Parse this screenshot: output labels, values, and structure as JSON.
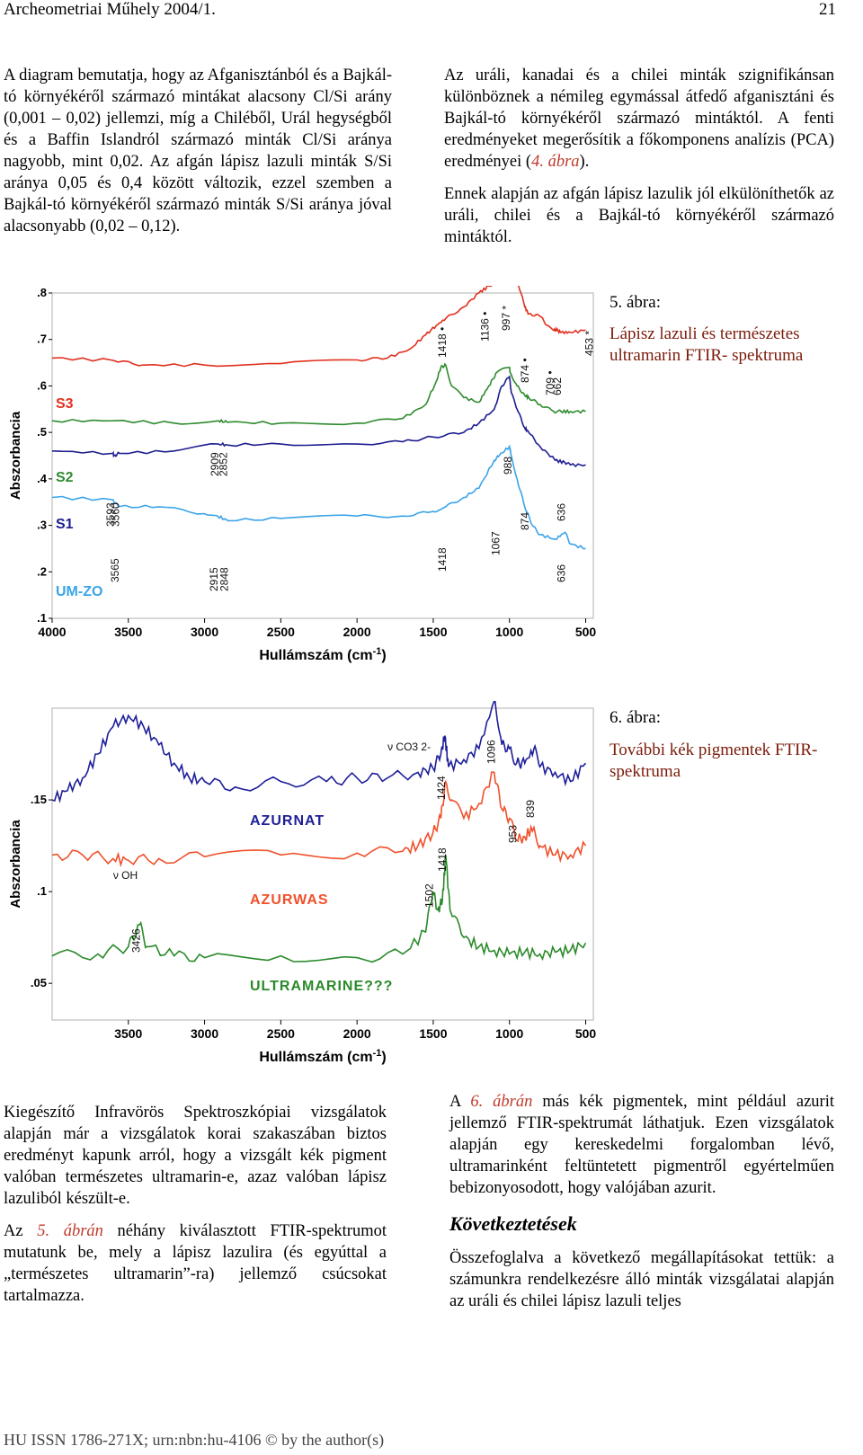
{
  "header": {
    "journal": "Archeometriai Műhely 2004/1.",
    "page": "21"
  },
  "top_left": [
    "A diagram bemutatja, hogy az Afganisztánból és a Bajkál-tó környékéről származó mintákat alacsony Cl/Si arány (0,001 – 0,02) jellemzi, míg a Chiléből, Urál hegységből és a Baffin Islandról származó minták Cl/Si aránya nagyobb, mint 0,02. Az afgán lápisz lazuli minták S/Si aránya 0,05 és 0,4 között változik, ezzel szemben a Bajkál-tó környékéről származó minták S/Si aránya jóval alacsonyabb (0,02 – 0,12)."
  ],
  "top_right": {
    "p1_a": "Az uráli, kanadai és a chilei minták szignifikánsan különböznek a némileg egymással átfedő afganisztáni és Bajkál-tó környékéről származó mintáktól. A fenti eredményeket megerősítik a főkomponens analízis (PCA) eredményei (",
    "p1_ref": "4. ábra",
    "p1_b": ").",
    "p2": "Ennek alapján az afgán lápisz lazulik jól elkülöníthetők az uráli, chilei és a Bajkál-tó környékéről származó mintáktól."
  },
  "fig5": {
    "number": "5. ábra:",
    "title": "Lápisz lazuli és természetes ultramarin FTIR- spektruma"
  },
  "fig6": {
    "number": "6. ábra:",
    "title": "További kék pigmentek FTIR-spektruma"
  },
  "bottom_left": {
    "p1": "Kiegészítő Infravörös Spektroszkópiai vizsgálatok alapján már a vizsgálatok korai szakaszában biztos eredményt kapunk arról, hogy a vizsgált kék pigment valóban természetes ultramarin-e, azaz valóban lápisz lazuliból készült-e.",
    "p2_a": "Az ",
    "p2_ref": "5. ábrán",
    "p2_b": " néhány kiválasztott FTIR-spektrumot mutatunk be, mely a lápisz lazulira (és egyúttal a „természetes ultramarin”-ra) jellemző csúcsokat tartalmazza."
  },
  "bottom_right": {
    "p1_a": "A ",
    "p1_ref": "6. ábrán",
    "p1_b": " más kék pigmentek, mint például azurit jellemző FTIR-spektrumát láthatjuk. Ezen vizsgálatok alapján egy kereskedelmi forgalomban lévő, ultramarinként feltüntetett pigmentről egyértelműen bebizonyosodott, hogy valójában azurit.",
    "heading": "Következtetések",
    "p2": "Összefoglalva a következő megállapításokat tettük: a számunkra rendelkezésre álló minták vizsgálatai alapján az uráli és chilei lápisz lazuli teljes"
  },
  "footer": "HU ISSN 1786-271X; urn:nbn:hu-4106 © by the author(s)",
  "chart_data": [
    {
      "type": "line",
      "ylabel": "Abszorbancia",
      "xlabel": "Hullámszám (cm-1)",
      "x_ticks": [
        "4000",
        "3500",
        "3000",
        "2500",
        "2000",
        "1500",
        "1000",
        "500"
      ],
      "y_ticks": [
        ".1",
        ".2",
        ".3",
        ".4",
        ".5",
        ".6",
        ".7",
        ".8"
      ],
      "xlim": [
        4000,
        450
      ],
      "ylim": [
        0.1,
        0.8
      ],
      "series": [
        {
          "name": "S3",
          "color": "#e0301e",
          "values": [
            [
              4000,
              0.66
            ],
            [
              3600,
              0.655
            ],
            [
              3400,
              0.645
            ],
            [
              3000,
              0.645
            ],
            [
              2500,
              0.648
            ],
            [
              2000,
              0.656
            ],
            [
              1800,
              0.66
            ],
            [
              1650,
              0.68
            ],
            [
              1550,
              0.71
            ],
            [
              1480,
              0.73
            ],
            [
              1418,
              0.745
            ],
            [
              1300,
              0.77
            ],
            [
              1200,
              0.8
            ],
            [
              1136,
              0.815
            ],
            [
              1050,
              0.83
            ],
            [
              1000,
              0.85
            ],
            [
              997,
              0.87
            ],
            [
              950,
              0.83
            ],
            [
              900,
              0.77
            ],
            [
              874,
              0.755
            ],
            [
              800,
              0.75
            ],
            [
              750,
              0.73
            ],
            [
              709,
              0.72
            ],
            [
              690,
              0.72
            ],
            [
              662,
              0.715
            ],
            [
              600,
              0.715
            ],
            [
              500,
              0.72
            ]
          ]
        },
        {
          "name": "S2",
          "color": "#2e8b2e",
          "values": [
            [
              4000,
              0.525
            ],
            [
              3600,
              0.525
            ],
            [
              3200,
              0.52
            ],
            [
              2909,
              0.525
            ],
            [
              2852,
              0.522
            ],
            [
              2500,
              0.52
            ],
            [
              2000,
              0.52
            ],
            [
              1700,
              0.53
            ],
            [
              1550,
              0.56
            ],
            [
              1480,
              0.61
            ],
            [
              1450,
              0.64
            ],
            [
              1418,
              0.645
            ],
            [
              1380,
              0.6
            ],
            [
              1300,
              0.575
            ],
            [
              1200,
              0.565
            ],
            [
              1136,
              0.6
            ],
            [
              1080,
              0.63
            ],
            [
              1000,
              0.64
            ],
            [
              997,
              0.63
            ],
            [
              950,
              0.6
            ],
            [
              900,
              0.58
            ],
            [
              874,
              0.575
            ],
            [
              800,
              0.56
            ],
            [
              709,
              0.545
            ],
            [
              662,
              0.545
            ],
            [
              600,
              0.545
            ],
            [
              500,
              0.545
            ]
          ]
        },
        {
          "name": "S1",
          "color": "#1d1d8f",
          "values": [
            [
              4000,
              0.46
            ],
            [
              3600,
              0.455
            ],
            [
              3593,
              0.45
            ],
            [
              3560,
              0.455
            ],
            [
              3200,
              0.46
            ],
            [
              2909,
              0.475
            ],
            [
              2852,
              0.473
            ],
            [
              2500,
              0.475
            ],
            [
              2000,
              0.475
            ],
            [
              1700,
              0.48
            ],
            [
              1500,
              0.49
            ],
            [
              1300,
              0.5
            ],
            [
              1200,
              0.52
            ],
            [
              1100,
              0.55
            ],
            [
              1050,
              0.6
            ],
            [
              1000,
              0.62
            ],
            [
              988,
              0.585
            ],
            [
              950,
              0.55
            ],
            [
              900,
              0.51
            ],
            [
              874,
              0.5
            ],
            [
              800,
              0.47
            ],
            [
              700,
              0.44
            ],
            [
              636,
              0.435
            ],
            [
              600,
              0.43
            ],
            [
              500,
              0.43
            ]
          ]
        },
        {
          "name": "UM-ZO",
          "color": "#3ba4e8",
          "values": [
            [
              4000,
              0.36
            ],
            [
              3600,
              0.355
            ],
            [
              3565,
              0.34
            ],
            [
              3300,
              0.34
            ],
            [
              3000,
              0.325
            ],
            [
              2915,
              0.32
            ],
            [
              2848,
              0.31
            ],
            [
              2500,
              0.315
            ],
            [
              2000,
              0.32
            ],
            [
              1700,
              0.32
            ],
            [
              1500,
              0.33
            ],
            [
              1418,
              0.34
            ],
            [
              1300,
              0.36
            ],
            [
              1200,
              0.38
            ],
            [
              1100,
              0.44
            ],
            [
              1067,
              0.45
            ],
            [
              1000,
              0.47
            ],
            [
              988,
              0.45
            ],
            [
              950,
              0.4
            ],
            [
              900,
              0.34
            ],
            [
              850,
              0.3
            ],
            [
              800,
              0.28
            ],
            [
              700,
              0.27
            ],
            [
              636,
              0.285
            ],
            [
              600,
              0.26
            ],
            [
              500,
              0.25
            ]
          ]
        }
      ],
      "peak_labels": [
        "1418 •",
        "1136 •",
        "997 *",
        "874 •",
        "709 •",
        "662",
        "453 *",
        "2909",
        "2852",
        "3593",
        "3560",
        "988",
        "874",
        "636",
        "1067",
        "1418",
        "3565",
        "2915",
        "2848",
        "636"
      ]
    },
    {
      "type": "line",
      "ylabel": "Abszorbancia",
      "xlabel": "Hullámszám (cm-1)",
      "x_ticks": [
        "3500",
        "3000",
        "2500",
        "2000",
        "1500",
        "1000",
        "500"
      ],
      "y_ticks": [
        ".05",
        ".1",
        ".15"
      ],
      "xlim": [
        4000,
        450
      ],
      "ylim": [
        0.03,
        0.2
      ],
      "series": [
        {
          "name": "AZURNAT",
          "color": "#1e1e9a",
          "values": [
            [
              4000,
              0.15
            ],
            [
              3900,
              0.155
            ],
            [
              3800,
              0.162
            ],
            [
              3700,
              0.175
            ],
            [
              3600,
              0.19
            ],
            [
              3500,
              0.196
            ],
            [
              3400,
              0.19
            ],
            [
              3300,
              0.18
            ],
            [
              3200,
              0.17
            ],
            [
              3100,
              0.162
            ],
            [
              3000,
              0.16
            ],
            [
              2800,
              0.157
            ],
            [
              2500,
              0.16
            ],
            [
              2200,
              0.16
            ],
            [
              2000,
              0.162
            ],
            [
              1800,
              0.162
            ],
            [
              1600,
              0.165
            ],
            [
              1500,
              0.167
            ],
            [
              1450,
              0.175
            ],
            [
              1424,
              0.185
            ],
            [
              1400,
              0.168
            ],
            [
              1300,
              0.172
            ],
            [
              1200,
              0.178
            ],
            [
              1096,
              0.205
            ],
            [
              1050,
              0.18
            ],
            [
              1000,
              0.178
            ],
            [
              953,
              0.17
            ],
            [
              900,
              0.17
            ],
            [
              839,
              0.178
            ],
            [
              800,
              0.168
            ],
            [
              700,
              0.165
            ],
            [
              600,
              0.16
            ],
            [
              500,
              0.17
            ]
          ]
        },
        {
          "name": "AZURWAS",
          "color": "#f0502a",
          "values": [
            [
              4000,
              0.12
            ],
            [
              3800,
              0.12
            ],
            [
              3600,
              0.118
            ],
            [
              3500,
              0.117
            ],
            [
              3300,
              0.118
            ],
            [
              3000,
              0.119
            ],
            [
              2500,
              0.12
            ],
            [
              2000,
              0.121
            ],
            [
              1700,
              0.122
            ],
            [
              1600,
              0.125
            ],
            [
              1502,
              0.132
            ],
            [
              1450,
              0.14
            ],
            [
              1418,
              0.16
            ],
            [
              1380,
              0.15
            ],
            [
              1300,
              0.14
            ],
            [
              1200,
              0.148
            ],
            [
              1100,
              0.165
            ],
            [
              1050,
              0.145
            ],
            [
              1000,
              0.14
            ],
            [
              953,
              0.128
            ],
            [
              900,
              0.13
            ],
            [
              839,
              0.135
            ],
            [
              800,
              0.125
            ],
            [
              700,
              0.12
            ],
            [
              600,
              0.12
            ],
            [
              500,
              0.125
            ]
          ]
        },
        {
          "name": "ULTRAMARINE???",
          "color": "#2a8a2a",
          "values": [
            [
              4000,
              0.065
            ],
            [
              3700,
              0.066
            ],
            [
              3500,
              0.07
            ],
            [
              3426,
              0.082
            ],
            [
              3380,
              0.07
            ],
            [
              3200,
              0.065
            ],
            [
              3000,
              0.064
            ],
            [
              2500,
              0.065
            ],
            [
              2000,
              0.064
            ],
            [
              1700,
              0.066
            ],
            [
              1550,
              0.078
            ],
            [
              1502,
              0.1
            ],
            [
              1470,
              0.09
            ],
            [
              1440,
              0.095
            ],
            [
              1418,
              0.12
            ],
            [
              1390,
              0.09
            ],
            [
              1300,
              0.075
            ],
            [
              1200,
              0.07
            ],
            [
              1100,
              0.068
            ],
            [
              1000,
              0.066
            ],
            [
              900,
              0.067
            ],
            [
              800,
              0.066
            ],
            [
              700,
              0.067
            ],
            [
              600,
              0.068
            ],
            [
              500,
              0.072
            ]
          ]
        }
      ],
      "peak_labels": [
        "ν OH",
        "ν CO3 2-",
        "1424",
        "1096",
        "953",
        "839",
        "1418",
        "1502",
        "3426"
      ]
    }
  ]
}
